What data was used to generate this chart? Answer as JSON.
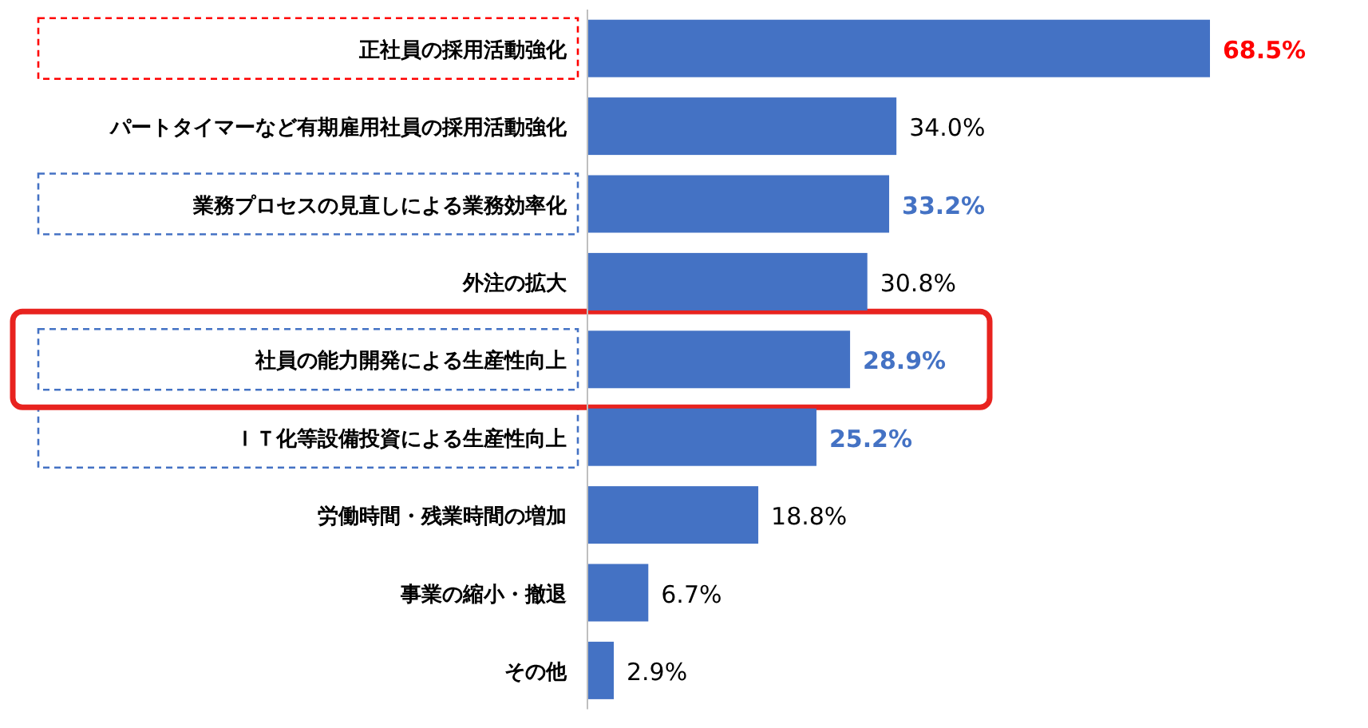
{
  "chart_data": {
    "type": "bar",
    "orientation": "horizontal",
    "categories": [
      "正社員の採用活動強化",
      "パートタイマーなど有期雇用社員の採用活動強化",
      "業務プロセスの見直しによる業務効率化",
      "外注の拡大",
      "社員の能力開発による生産性向上",
      "ＩＴ化等設備投資による生産性向上",
      "労働時間・残業時間の増加",
      "事業の縮小・撤退",
      "その他"
    ],
    "values": [
      68.5,
      34.0,
      33.2,
      30.8,
      28.9,
      25.2,
      18.8,
      6.7,
      2.9
    ],
    "value_labels": [
      "68.5%",
      "34.0%",
      "33.2%",
      "30.8%",
      "28.9%",
      "25.2%",
      "18.8%",
      "6.7%",
      "2.9%"
    ],
    "color": "#4472c4"
  }
}
